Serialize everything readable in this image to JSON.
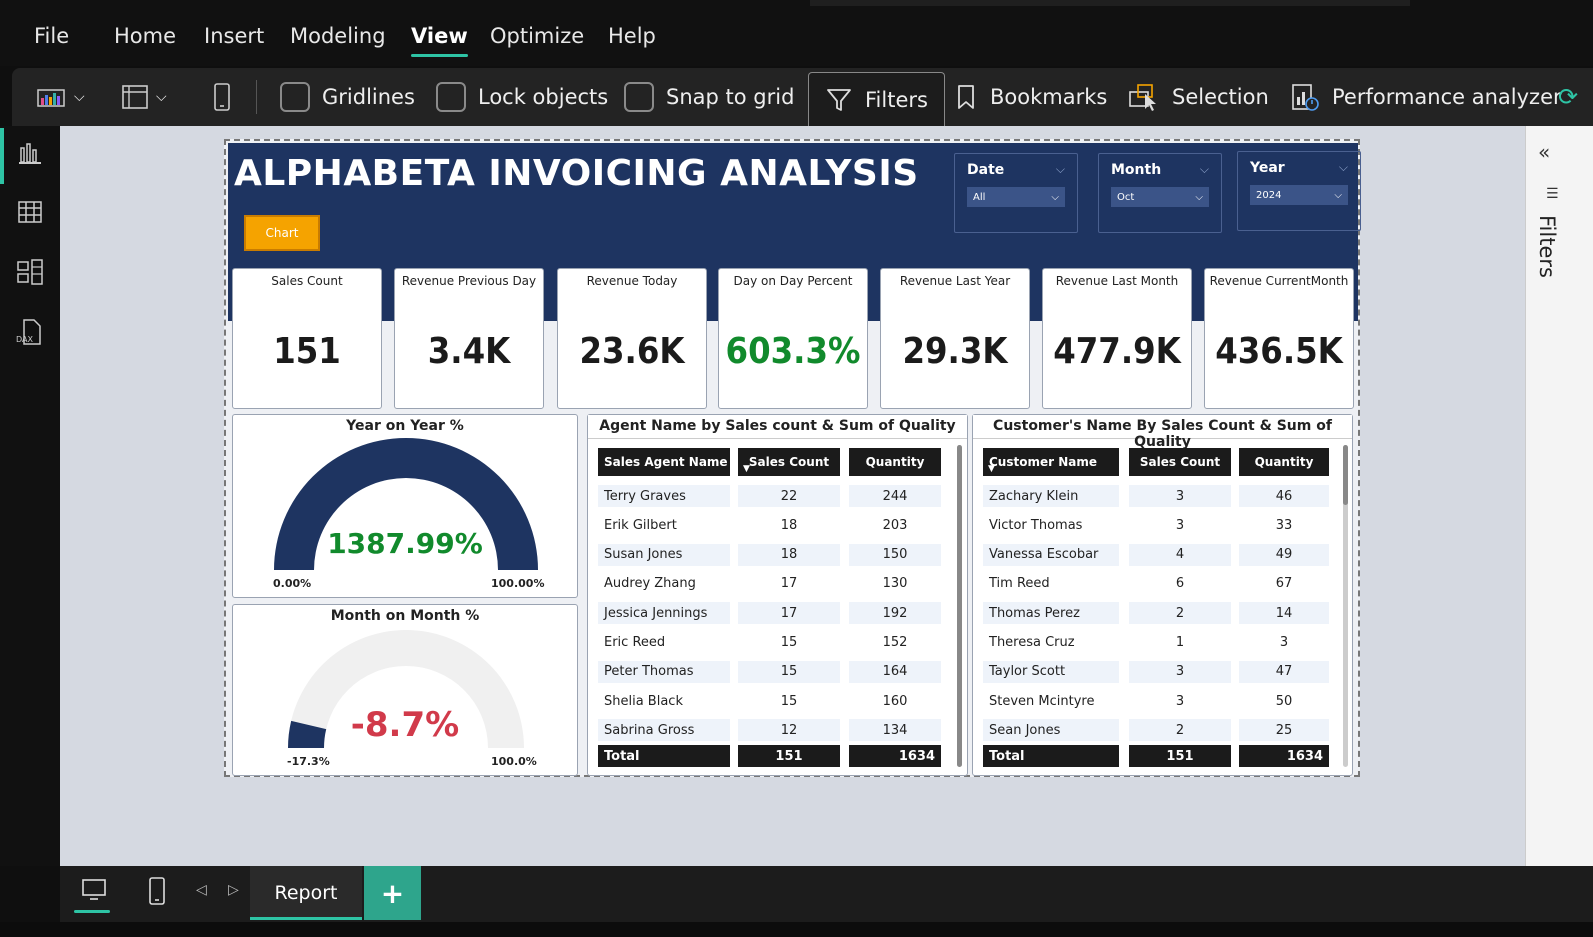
{
  "menu": {
    "items": [
      {
        "label": "File"
      },
      {
        "label": "Home"
      },
      {
        "label": "Insert"
      },
      {
        "label": "Modeling"
      },
      {
        "label": "View"
      },
      {
        "label": "Optimize"
      },
      {
        "label": "Help"
      }
    ],
    "active": "View"
  },
  "ribbon": {
    "gridlines": "Gridlines",
    "lock_objects": "Lock objects",
    "snap_to_grid": "Snap to grid",
    "filters": "Filters",
    "bookmarks": "Bookmarks",
    "selection": "Selection",
    "performance": "Performance analyzer"
  },
  "right_pane": {
    "label": "Filters"
  },
  "report": {
    "title": "ALPHABETA INVOICING ANALYSIS",
    "chart_button": "Chart",
    "slicers": [
      {
        "title": "Date",
        "value": "All"
      },
      {
        "title": "Month",
        "value": "Oct"
      },
      {
        "title": "Year",
        "value": "2024"
      }
    ],
    "kpis": [
      {
        "label": "Sales Count",
        "value": "151"
      },
      {
        "label": "Revenue Previous Day",
        "value": "3.4K"
      },
      {
        "label": "Revenue Today",
        "value": "23.6K"
      },
      {
        "label": "Day on Day Percent",
        "value": "603.3%"
      },
      {
        "label": "Revenue Last Year",
        "value": "29.3K"
      },
      {
        "label": "Revenue Last Month",
        "value": "477.9K"
      },
      {
        "label": "Revenue CurrentMonth",
        "value": "436.5K"
      }
    ],
    "gauges": {
      "yoy": {
        "title": "Year on Year %",
        "value": "1387.99%",
        "min": "0.00%",
        "max": "100.00%",
        "fill_fraction": 1.0,
        "color": "#1e3461",
        "value_color": "#118a2c"
      },
      "mom": {
        "title": "Month on Month %",
        "value": "-8.7%",
        "min": "-17.3%",
        "max": "100.0%",
        "fill_fraction": 0.074,
        "color": "#1e3461",
        "value_color": "#d13a4a"
      }
    },
    "agent_table": {
      "title": "Agent Name by Sales count & Sum of Quality",
      "headers": [
        "Sales Agent Name",
        "Sales Count",
        "Quantity"
      ],
      "rows": [
        [
          "Terry Graves",
          "22",
          "244"
        ],
        [
          "Erik Gilbert",
          "18",
          "203"
        ],
        [
          "Susan Jones",
          "18",
          "150"
        ],
        [
          "Audrey Zhang",
          "17",
          "130"
        ],
        [
          "Jessica Jennings",
          "17",
          "192"
        ],
        [
          "Eric Reed",
          "15",
          "152"
        ],
        [
          "Peter Thomas",
          "15",
          "164"
        ],
        [
          "Shelia Black",
          "15",
          "160"
        ],
        [
          "Sabrina Gross",
          "12",
          "134"
        ]
      ],
      "total": [
        "Total",
        "151",
        "1634"
      ]
    },
    "customer_table": {
      "title": "Customer's Name By Sales Count & Sum of Quality",
      "headers": [
        "Customer Name",
        "Sales Count",
        "Quantity"
      ],
      "rows": [
        [
          "Zachary Klein",
          "3",
          "46"
        ],
        [
          "Victor Thomas",
          "3",
          "33"
        ],
        [
          "Vanessa Escobar",
          "4",
          "49"
        ],
        [
          "Tim Reed",
          "6",
          "67"
        ],
        [
          "Thomas Perez",
          "2",
          "14"
        ],
        [
          "Theresa Cruz",
          "1",
          "3"
        ],
        [
          "Taylor Scott",
          "3",
          "47"
        ],
        [
          "Steven Mcintyre",
          "3",
          "50"
        ],
        [
          "Sean Jones",
          "2",
          "25"
        ]
      ],
      "total": [
        "Total",
        "151",
        "1634"
      ]
    }
  },
  "bottom": {
    "tab": "Report",
    "add": "+"
  },
  "colors": {
    "accent": "#2ec4a5",
    "navy": "#1e3461",
    "green": "#118a2c",
    "red": "#d13a4a",
    "orange": "#f5a300"
  }
}
